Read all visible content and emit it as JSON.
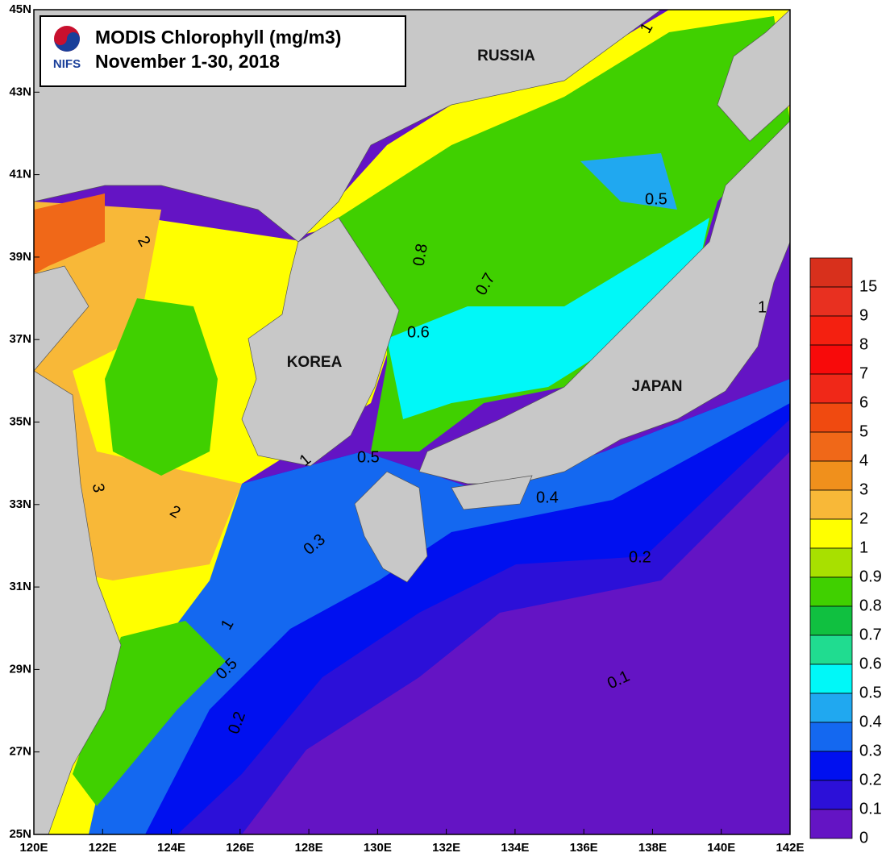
{
  "title": "MODIS Chlorophyll (mg/m3)",
  "subtitle": "November 1-30, 2018",
  "logo_text": "NIFS",
  "regions": [
    "RUSSIA",
    "KOREA",
    "JAPAN"
  ],
  "lon_labels": [
    "120E",
    "122E",
    "124E",
    "126E",
    "128E",
    "130E",
    "132E",
    "134E",
    "136E",
    "138E",
    "140E",
    "142E"
  ],
  "lat_labels": [
    "45N",
    "43N",
    "41N",
    "39N",
    "37N",
    "35N",
    "33N",
    "31N",
    "29N",
    "27N",
    "25N"
  ],
  "contour_labels": [
    "0.5",
    "0.8",
    "0.7",
    "0.6",
    "0.5",
    "0.4",
    "0.3",
    "0.2",
    "0.1",
    "0.5",
    "0.2",
    "1",
    "2",
    "3",
    "2",
    "1",
    "1",
    "1"
  ],
  "colorbar": {
    "labels": [
      "15",
      "9",
      "8",
      "7",
      "6",
      "5",
      "4",
      "3",
      "2",
      "1",
      "0.9",
      "0.8",
      "0.7",
      "0.6",
      "0.5",
      "0.4",
      "0.3",
      "0.2",
      "0.1",
      "0"
    ],
    "colors": [
      "#d8301c",
      "#e83020",
      "#f42010",
      "#f80a0a",
      "#f02818",
      "#f04a10",
      "#f06818",
      "#f0901c",
      "#f8b838",
      "#ffff00",
      "#a8e000",
      "#40d000",
      "#10c040",
      "#20dc90",
      "#00f8f8",
      "#20a8f0",
      "#1468f0",
      "#0010f0",
      "#2c10d8",
      "#6414c4"
    ]
  }
}
